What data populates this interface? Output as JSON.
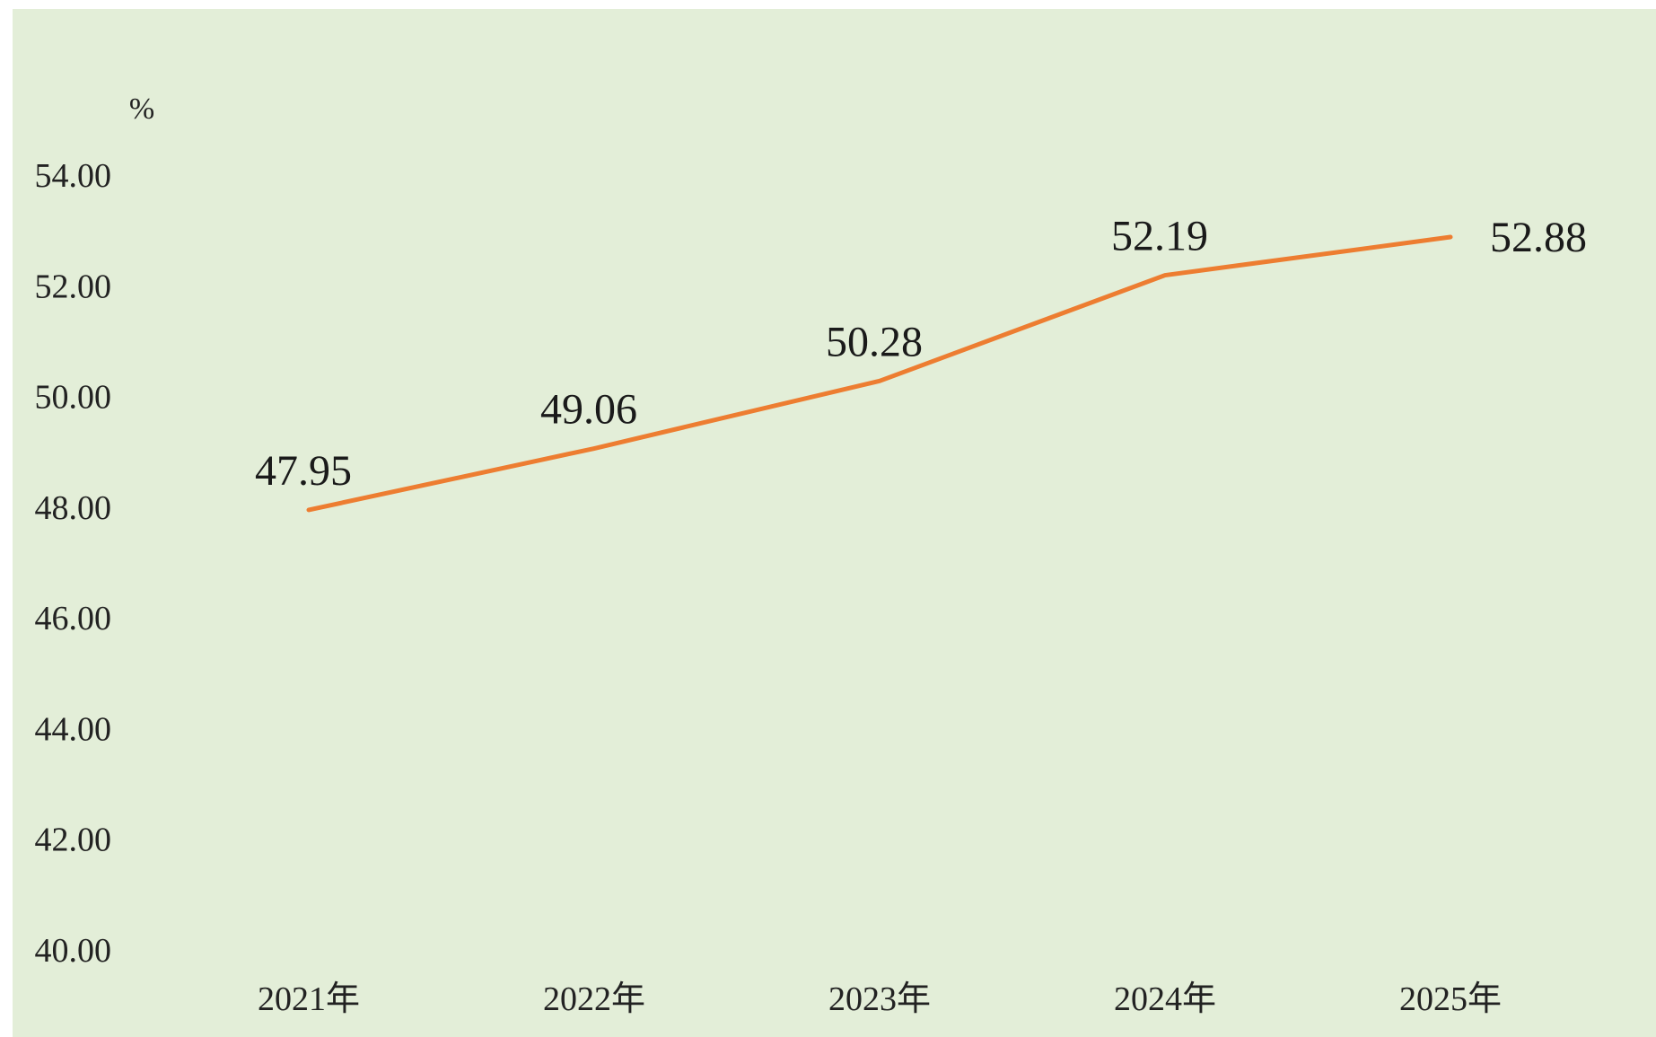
{
  "chart_data": {
    "type": "line",
    "title": "",
    "xlabel": "",
    "ylabel": "%",
    "categories": [
      "2021年",
      "2022年",
      "2023年",
      "2024年",
      "2025年"
    ],
    "series": [
      {
        "values": [
          47.95,
          49.06,
          50.28,
          52.19,
          52.88
        ],
        "data_labels": [
          "47.95",
          "49.06",
          "50.28",
          "52.19",
          "52.88"
        ]
      }
    ],
    "ylim": [
      40,
      54
    ],
    "yticks": [
      40,
      42,
      44,
      46,
      48,
      50,
      52,
      54
    ],
    "ytick_labels": [
      "40.00",
      "42.00",
      "44.00",
      "46.00",
      "48.00",
      "50.00",
      "52.00",
      "54.00"
    ],
    "grid": false,
    "legend": "none",
    "colors": {
      "line": "#ed7d31",
      "background": "#e3eed8",
      "text": "#222222"
    }
  }
}
